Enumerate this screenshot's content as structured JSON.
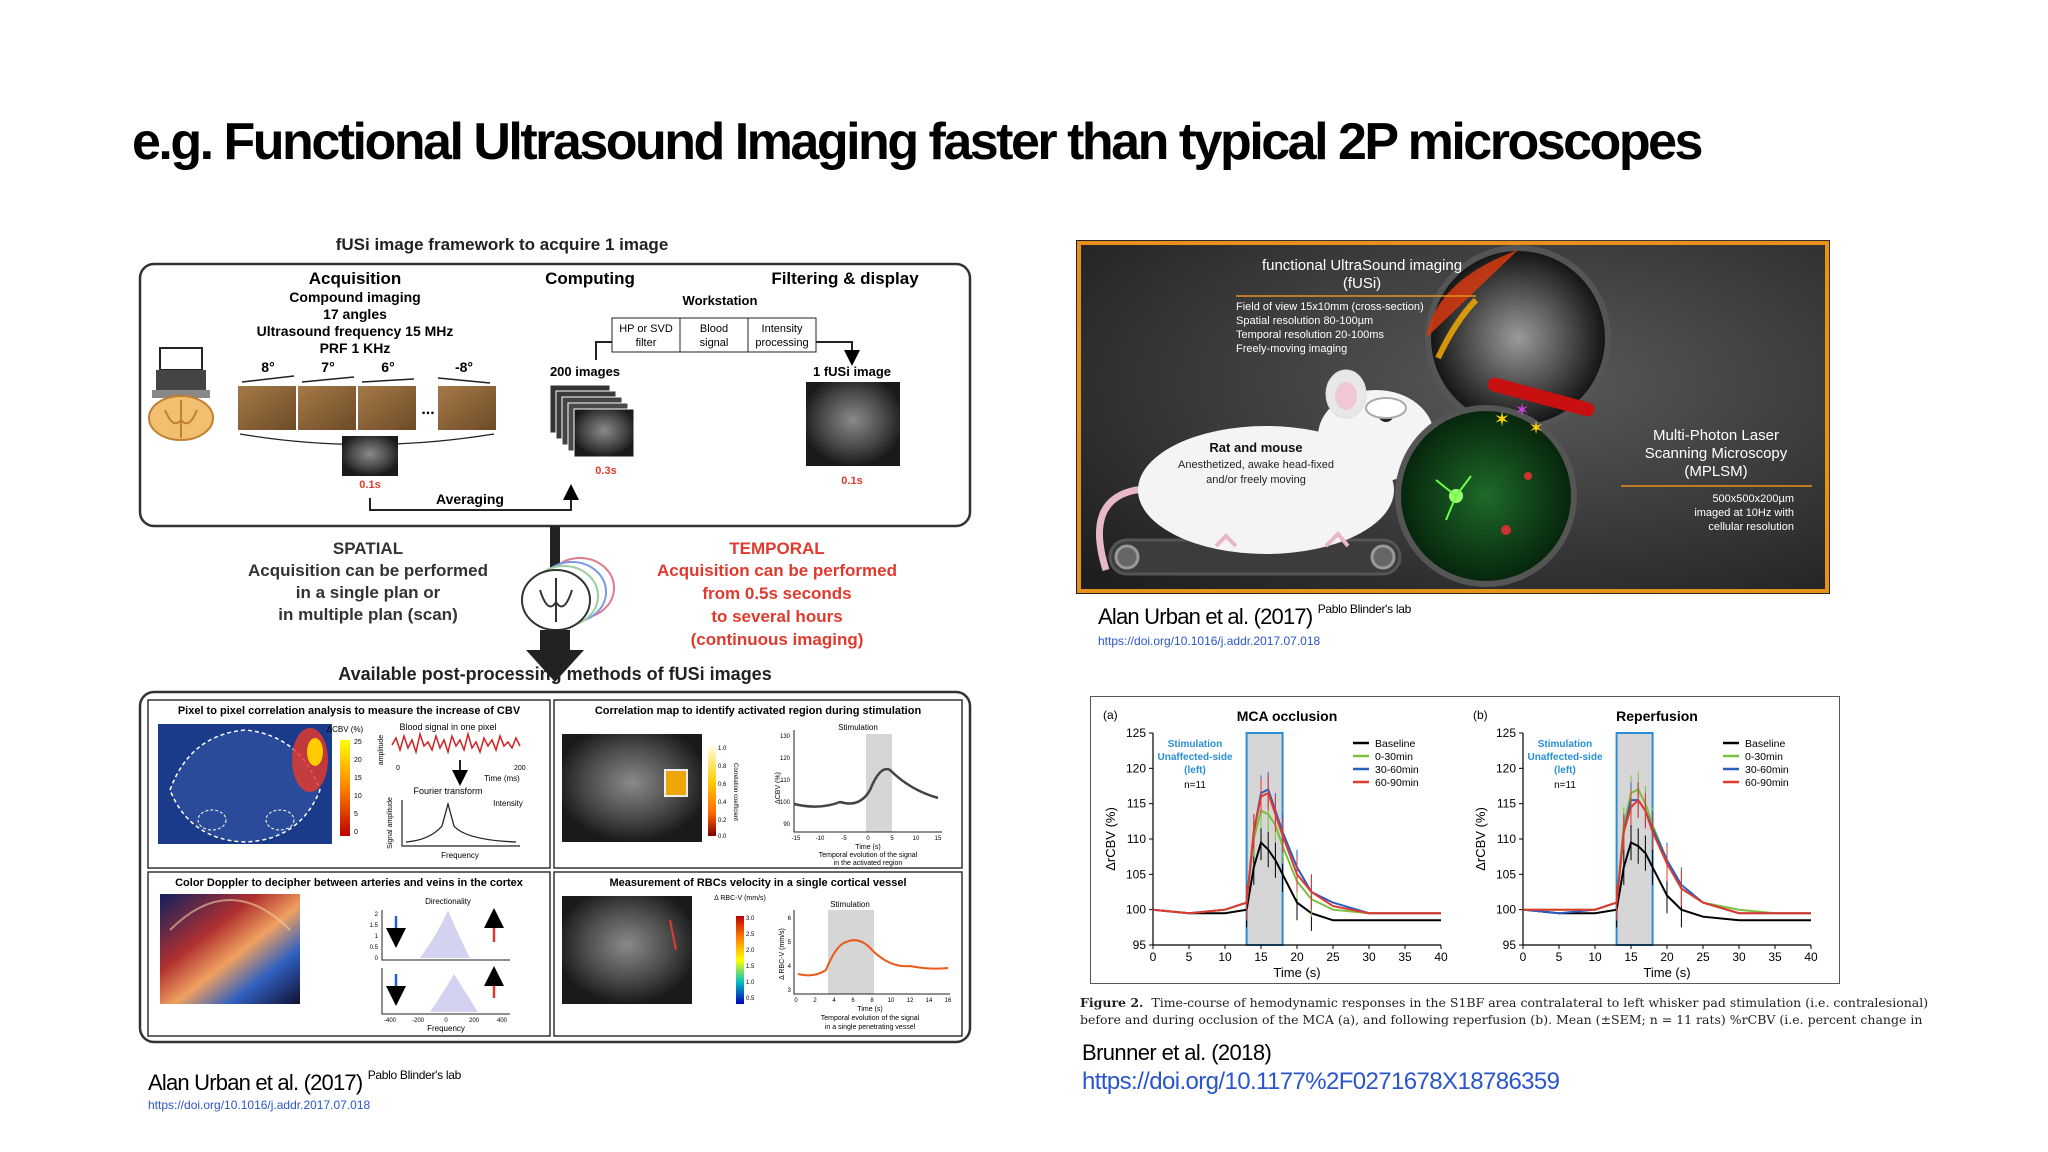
{
  "slide": {
    "title": "e.g. Functional Ultrasound Imaging faster than typical 2P microscopes"
  },
  "left_figure": {
    "header": "fUSi image framework to acquire 1 image",
    "acquisition": {
      "title": "Acquisition",
      "lines": [
        "Compound imaging",
        "17 angles",
        "Ultrasound frequency 15 MHz",
        "PRF 1 KHz"
      ],
      "angles": [
        "8°",
        "7°",
        "6°",
        "-8°"
      ],
      "ellipsis": "...",
      "time": "0.1s"
    },
    "computing": {
      "title": "Computing",
      "workstation": "Workstation",
      "steps": [
        "HP or SVD filter",
        "Blood signal",
        "Intensity processing"
      ],
      "images_label": "200 images",
      "time": "0.3s"
    },
    "filtering": {
      "title": "Filtering & display",
      "image_label": "1 fUSi image",
      "time": "0.1s"
    },
    "averaging": "Averaging",
    "spatial": {
      "title": "SPATIAL",
      "lines": [
        "Acquisition can be performed",
        "in a single plan or",
        "in multiple plan (scan)"
      ]
    },
    "temporal": {
      "title": "TEMPORAL",
      "lines": [
        "Acquisition can be performed",
        "from 0.5s seconds",
        "to several hours",
        "(continuous imaging)"
      ]
    },
    "methods_header": "Available post-processing methods of fUSi images",
    "panels": [
      {
        "title": "Pixel to pixel correlation analysis to measure the increase of CBV"
      },
      {
        "title": "Correlation map to identify activated region during stimulation"
      },
      {
        "title": "Color Doppler to decipher between arteries and veins in the cortex"
      },
      {
        "title": "Measurement of RBCs velocity in a single cortical vessel"
      }
    ],
    "panel_labels": {
      "dcbv": "ΔCBV (%)",
      "cbv_ticks": [
        "25",
        "20",
        "15",
        "10",
        "5",
        "0"
      ],
      "blood_signal": "Blood signal in one pixel",
      "amplitude": "amplitude",
      "time_ms": "Time (ms)",
      "t0": "0",
      "t200": "200",
      "fourier": "Fourier transform",
      "intensity": "Intensity",
      "signal_amp": "Signal amplitude",
      "frequency": "Frequency",
      "stimulation": "Stimulation",
      "corr_coef": "Correlation coefficient",
      "corr_ticks": [
        "1.0",
        "0.8",
        "0.6",
        "0.4",
        "0.2",
        "0.0"
      ],
      "dcbv_pct": "ΔCBV (%)",
      "yticks_corr": [
        "130",
        "120",
        "110",
        "100",
        "90"
      ],
      "xticks_corr": [
        "-15",
        "-10",
        "-5",
        "0",
        "5",
        "10",
        "15"
      ],
      "time_s": "Time (s)",
      "temporal_evo_1": "Temporal evolution of the signal",
      "temporal_evo_1b": "in the activated region",
      "directionality": "Directionality",
      "doppler_xticks": [
        "-400",
        "-200",
        "0",
        "200",
        "400"
      ],
      "doppler_yticks": [
        "2",
        "1.5",
        "1",
        "0.5",
        "0"
      ],
      "rbc_v": "Δ RBC-V (mm/s)",
      "rbc_ticks": [
        "3.0",
        "2.5",
        "2.0",
        "1.5",
        "1.0",
        "0.5"
      ],
      "rbc_axis": "Δ RBC-V (mm/s)",
      "rbc_yticks": [
        "6",
        "5",
        "4",
        "3"
      ],
      "rbc_xticks": [
        "0",
        "2",
        "4",
        "6",
        "8",
        "10",
        "12",
        "14",
        "16"
      ],
      "temporal_evo_2": "Temporal evolution of the signal",
      "temporal_evo_2b": "in a single penetrating vessel"
    },
    "citation": {
      "author": "Alan Urban et al. (2017)",
      "lab": "Pablo Blinder's lab",
      "doi": "https://doi.org/10.1016/j.addr.2017.07.018"
    }
  },
  "right_top": {
    "fusi_title": "functional UltraSound imaging",
    "fusi_abbr": "(fUSi)",
    "fusi_specs": [
      "Field of view 15x10mm (cross-section)",
      "Spatial resolution 80-100µm",
      "Temporal resolution 20-100ms",
      "Freely-moving imaging"
    ],
    "rat_title": "Rat and mouse",
    "rat_lines": [
      "Anesthetized, awake head-fixed",
      "and/or freely moving"
    ],
    "mplsm_lines": [
      "Multi-Photon Laser",
      "Scanning Microscopy",
      "(MPLSM)"
    ],
    "mplsm_specs": [
      "500x500x200µm",
      "imaged at 10Hz with",
      "cellular resolution"
    ],
    "citation": {
      "author": "Alan Urban et al. (2017)",
      "lab": "Pablo Blinder's lab",
      "doi": "https://doi.org/10.1016/j.addr.2017.07.018"
    }
  },
  "chart_data": [
    {
      "type": "line",
      "panel": "(a)",
      "title": "MCA occlusion",
      "xlabel": "Time (s)",
      "ylabel": "ΔrCBV (%)",
      "xlim": [
        0,
        40
      ],
      "ylim": [
        95,
        125
      ],
      "xticks": [
        0,
        5,
        10,
        15,
        20,
        25,
        30,
        35,
        40
      ],
      "yticks": [
        95,
        100,
        105,
        110,
        115,
        120,
        125
      ],
      "annotation": [
        "Stimulation",
        "Unaffected-side",
        "(left)"
      ],
      "n_label": "n=11",
      "stimulation_window": [
        13,
        18
      ],
      "legend_position": "top-right",
      "x": [
        0,
        5,
        10,
        13,
        14,
        15,
        16,
        17,
        18,
        20,
        22,
        25,
        30,
        35,
        40
      ],
      "series": [
        {
          "name": "Baseline",
          "color": "#000000",
          "values": [
            100,
            99.5,
            99.5,
            100,
            106,
            109.5,
            108.5,
            107,
            105,
            101,
            99.5,
            98.5,
            98.5,
            98.5,
            98.5
          ]
        },
        {
          "name": "0-30min",
          "color": "#7cc040",
          "values": [
            100,
            99.5,
            100,
            101,
            110,
            114,
            113.5,
            112,
            109,
            104,
            101.5,
            100,
            99.5,
            99.5,
            99.5
          ]
        },
        {
          "name": "30-60min",
          "color": "#2a5fbf",
          "values": [
            100,
            99.5,
            100,
            101,
            111,
            116.5,
            117,
            114,
            111,
            106,
            102.5,
            101,
            99.5,
            99.5,
            99.5
          ]
        },
        {
          "name": "60-90min",
          "color": "#e03a2f",
          "values": [
            100,
            99.5,
            100,
            101,
            111,
            116,
            116.5,
            113.5,
            110.5,
            105,
            102.5,
            100.5,
            99.5,
            99.5,
            99.5
          ]
        }
      ]
    },
    {
      "type": "line",
      "panel": "(b)",
      "title": "Reperfusion",
      "xlabel": "Time (s)",
      "ylabel": "ΔrCBV (%)",
      "xlim": [
        0,
        40
      ],
      "ylim": [
        95,
        125
      ],
      "xticks": [
        0,
        5,
        10,
        15,
        20,
        25,
        30,
        35,
        40
      ],
      "yticks": [
        95,
        100,
        105,
        110,
        115,
        120,
        125
      ],
      "annotation": [
        "Stimulation",
        "Unaffected-side",
        "(left)"
      ],
      "n_label": "n=11",
      "stimulation_window": [
        13,
        18
      ],
      "legend_position": "top-right",
      "x": [
        0,
        5,
        10,
        13,
        14,
        15,
        16,
        17,
        18,
        20,
        22,
        25,
        30,
        35,
        40
      ],
      "series": [
        {
          "name": "Baseline",
          "color": "#000000",
          "values": [
            100,
            99.5,
            99.5,
            100,
            106,
            109.5,
            109,
            108,
            106,
            102,
            100,
            99,
            98.5,
            98.5,
            98.5
          ]
        },
        {
          "name": "0-30min",
          "color": "#7cc040",
          "values": [
            100,
            100,
            100,
            101,
            112,
            116.5,
            117,
            115,
            112,
            107,
            103,
            101,
            100,
            99.5,
            99.5
          ]
        },
        {
          "name": "30-60min",
          "color": "#2a5fbf",
          "values": [
            100,
            99.5,
            100,
            101,
            111,
            115.5,
            115.5,
            114,
            111.5,
            107,
            103.5,
            101,
            99.5,
            99.5,
            99.5
          ]
        },
        {
          "name": "60-90min",
          "color": "#e03a2f",
          "values": [
            100,
            100,
            100,
            101,
            111,
            114.5,
            115.5,
            114,
            111,
            106.5,
            103,
            101,
            99.5,
            99.5,
            99.5
          ]
        }
      ]
    }
  ],
  "right_bottom": {
    "caption_label": "Figure 2.",
    "caption_line1": "Time-course of hemodynamic responses in the S1BF area contralateral to left whisker pad stimulation (i.e. contralesional)",
    "caption_line2": "before and during occlusion of the MCA (a), and following reperfusion (b). Mean (±SEM; n = 11 rats) %rCBV (i.e. percent change in",
    "citation": "Brunner et al. (2018)",
    "doi": "https://doi.org/10.1177%2F0271678X18786359"
  },
  "colors": {
    "link": "#2a55cc",
    "temporal_red": "#e03a2f",
    "stim_blue": "#2a8fd6",
    "stim_fill": "#d6d6d6",
    "panel_dark": "#3a3a3a",
    "orange_outline": "#e8901a"
  }
}
